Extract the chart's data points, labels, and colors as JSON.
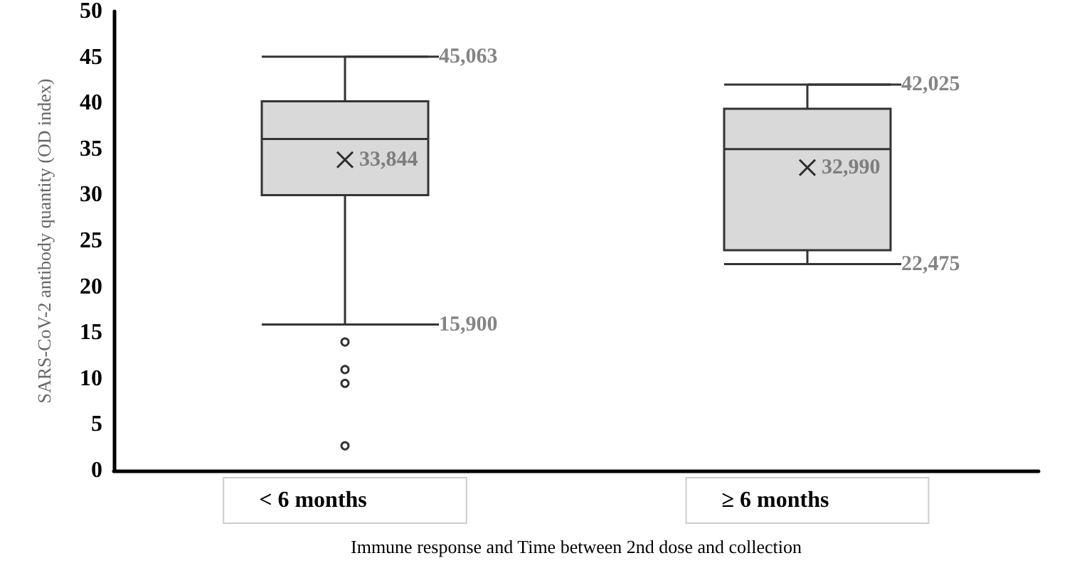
{
  "chart_data": {
    "type": "box",
    "xlabel": "Immune response and Time between 2nd dose and collection",
    "ylabel": "SARS-CoV-2 antibody quantity (OD index)",
    "categories": [
      "< 6 months",
      "≥ 6 months"
    ],
    "color": "#d9d9d9",
    "boxes": [
      {
        "low": 15.9,
        "q1": 30.0,
        "median": 36.1,
        "q3": 40.2,
        "high": 45.063,
        "mean": 33.844,
        "outliers": [
          14.0,
          11.0,
          9.5,
          2.7
        ]
      },
      {
        "low": 22.475,
        "q1": 24.0,
        "median": 35.0,
        "q3": 39.4,
        "high": 42.025,
        "mean": 32.99
      }
    ],
    "annotations": [
      "45,063",
      "33,844",
      "15,900",
      "42,025",
      "32,990",
      "22,475"
    ],
    "ylim": [
      0,
      50
    ],
    "yticks": [
      0,
      5,
      10,
      15,
      20,
      25,
      30,
      35,
      40,
      45,
      50
    ],
    "grid": false
  }
}
